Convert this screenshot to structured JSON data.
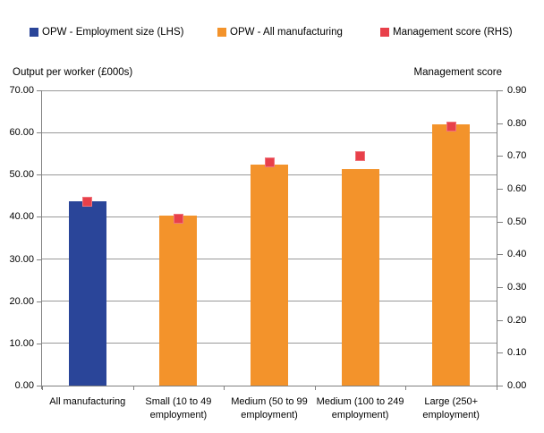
{
  "legend": {
    "items": [
      {
        "label": "OPW - Employment size (LHS)",
        "color": "#2A4599"
      },
      {
        "label": "OPW - All manufacturing",
        "color": "#F3932B"
      },
      {
        "label": "Management score (RHS)",
        "color": "#E8404A"
      }
    ]
  },
  "chart_data": {
    "type": "combo",
    "title": "",
    "categories": [
      "All manufacturing",
      "Small (10 to 49 employment)",
      "Medium (50 to 99 employment)",
      "Medium (100 to 249 employment)",
      "Large (250+ employment)"
    ],
    "series": [
      {
        "name": "OPW - Employment size (LHS)",
        "type": "bar",
        "axis": "left",
        "color": "#2A4599",
        "values": [
          43.7,
          null,
          null,
          null,
          null
        ]
      },
      {
        "name": "OPW - All manufacturing",
        "type": "bar",
        "axis": "left",
        "color": "#F3932B",
        "values": [
          null,
          40.2,
          52.4,
          51.3,
          61.9
        ]
      },
      {
        "name": "Management score (RHS)",
        "type": "scatter",
        "marker": "square",
        "axis": "right",
        "color": "#E8404A",
        "values": [
          0.56,
          0.51,
          0.68,
          0.7,
          0.79
        ]
      }
    ],
    "left_axis": {
      "title": "Output per worker (£000s)",
      "min": 0,
      "max": 70,
      "step": 10,
      "tick_labels": [
        "0.00",
        "10.00",
        "20.00",
        "30.00",
        "40.00",
        "50.00",
        "60.00",
        "70.00"
      ]
    },
    "right_axis": {
      "title": "Management score",
      "min": 0,
      "max": 0.9,
      "step": 0.1,
      "tick_labels": [
        "0.00",
        "0.10",
        "0.20",
        "0.30",
        "0.40",
        "0.50",
        "0.60",
        "0.70",
        "0.80",
        "0.90"
      ]
    },
    "grid": true,
    "legend_position": "top",
    "gridline_color": "#999999",
    "axis_line_color": "#808080",
    "background": "#FFFFFF",
    "text_color": "#000000"
  }
}
